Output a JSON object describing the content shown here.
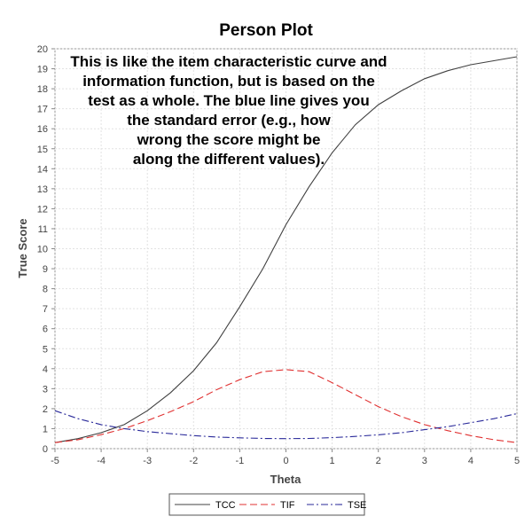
{
  "chart_data": {
    "type": "line",
    "title": "Person Plot",
    "xlabel": "Theta",
    "ylabel": "True Score",
    "xlim": [
      -5,
      5
    ],
    "ylim": [
      0,
      20
    ],
    "xticks": [
      -5,
      -4,
      -3,
      -2,
      -1,
      0,
      1,
      2,
      3,
      4,
      5
    ],
    "yticks": [
      0,
      1,
      2,
      3,
      4,
      5,
      6,
      7,
      8,
      9,
      10,
      11,
      12,
      13,
      14,
      15,
      16,
      17,
      18,
      19,
      20
    ],
    "grid": true,
    "legend_position": "bottom",
    "annotation": [
      "This is like the item characteristic curve and",
      "information function, but is based on the",
      "test as a whole.  The blue line gives you",
      "the standard error (e.g., how",
      "wrong the score might be",
      "along the different values)."
    ],
    "x": [
      -5,
      -4.5,
      -4,
      -3.5,
      -3,
      -2.5,
      -2,
      -1.5,
      -1,
      -0.5,
      0,
      0.5,
      1,
      1.5,
      2,
      2.5,
      3,
      3.5,
      4,
      4.5,
      5
    ],
    "series": [
      {
        "name": "TCC",
        "color": "#404040",
        "style": "solid",
        "values": [
          0.3,
          0.5,
          0.8,
          1.2,
          1.9,
          2.8,
          3.9,
          5.3,
          7.1,
          9.0,
          11.2,
          13.1,
          14.8,
          16.2,
          17.2,
          17.9,
          18.5,
          18.9,
          19.2,
          19.4,
          19.6
        ]
      },
      {
        "name": "TIF",
        "color": "#e03030",
        "style": "dashed",
        "values": [
          0.3,
          0.45,
          0.7,
          1.0,
          1.4,
          1.85,
          2.35,
          2.95,
          3.45,
          3.85,
          3.95,
          3.85,
          3.3,
          2.7,
          2.1,
          1.6,
          1.2,
          0.9,
          0.65,
          0.45,
          0.3
        ]
      },
      {
        "name": "TSE",
        "color": "#2a2a9a",
        "style": "dashdot",
        "values": [
          1.9,
          1.5,
          1.2,
          1.0,
          0.85,
          0.75,
          0.65,
          0.58,
          0.54,
          0.51,
          0.5,
          0.51,
          0.55,
          0.61,
          0.69,
          0.8,
          0.95,
          1.1,
          1.3,
          1.5,
          1.75
        ]
      }
    ]
  }
}
